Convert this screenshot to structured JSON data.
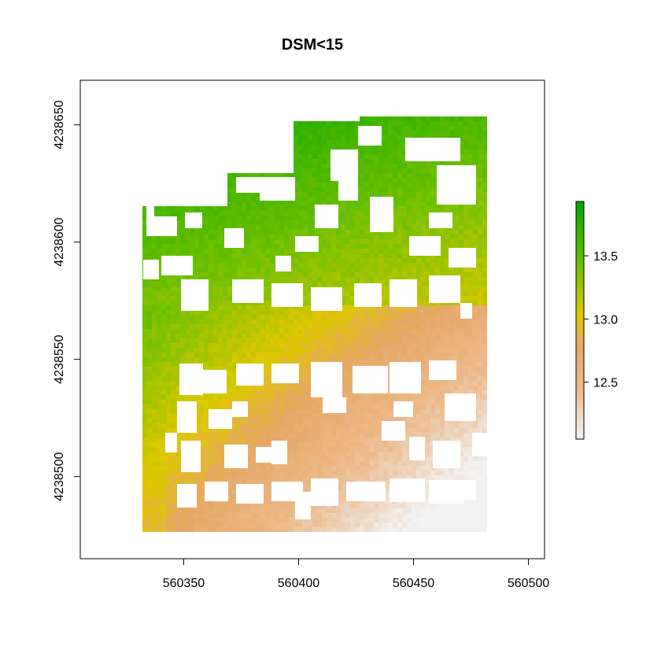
{
  "chart_data": {
    "type": "heatmap",
    "title": "DSM<15",
    "xlabel": "",
    "ylabel": "",
    "x_ticks": [
      560350,
      560400,
      560450,
      560500
    ],
    "y_ticks": [
      4238500,
      4238550,
      4238600,
      4238650
    ],
    "xlim": [
      560305,
      560507
    ],
    "ylim": [
      4238465,
      4238669
    ],
    "extent": {
      "x": [
        560330,
        560482
      ],
      "y": [
        4238478,
        4238654
      ]
    },
    "legend": {
      "placement": "right",
      "ticks": [
        12.5,
        13.0,
        13.5
      ],
      "tick_labels": [
        "12.5",
        "13.0",
        "13.5"
      ],
      "range": [
        12.05,
        13.93
      ]
    },
    "colors": {
      "low": "#f2f2f2",
      "mid_low": "#ebb98a",
      "mid": "#e6a866",
      "mid_high": "#dec800",
      "high_mid": "#70c000",
      "high": "#00a600"
    },
    "grid": false
  }
}
